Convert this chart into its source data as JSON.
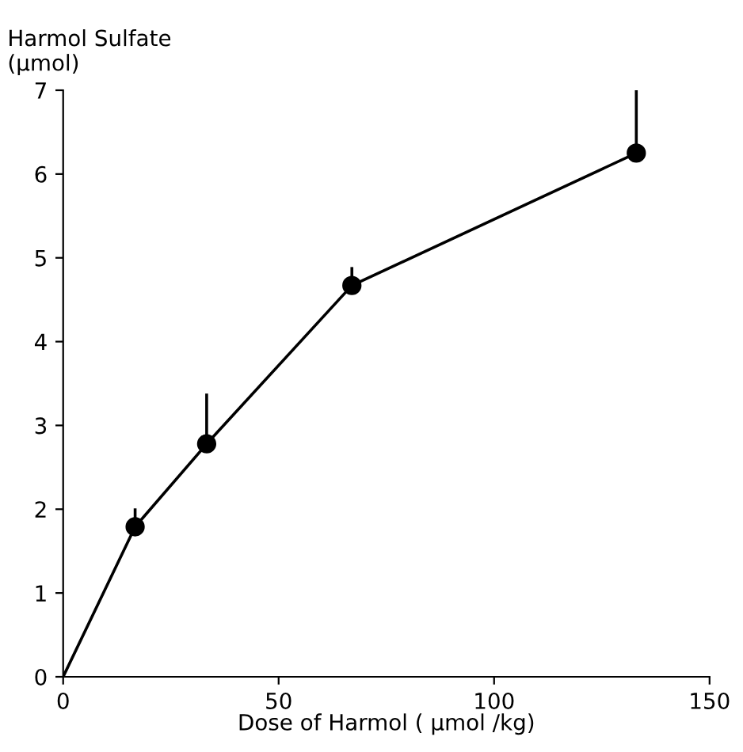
{
  "chart_data": {
    "type": "line",
    "ylabel": "Harmol Sulfate\n(μmol)",
    "xlabel": "Dose of Harmol ( μmol /kg)",
    "xlim": [
      0,
      150
    ],
    "xticks": [
      0,
      50,
      100,
      150
    ],
    "ylim": [
      0,
      7
    ],
    "yticks": [
      0,
      1,
      2,
      3,
      4,
      5,
      6,
      7
    ],
    "grid": false,
    "legend": false,
    "series": [
      {
        "type": "line",
        "color": "#000000",
        "marker": "none",
        "x": [
          0,
          16.7,
          33.3,
          67,
          133
        ],
        "values": [
          0,
          1.79,
          2.78,
          4.67,
          6.25
        ]
      },
      {
        "type": "scatter",
        "color": "#000000",
        "marker": "circle",
        "x": [
          16.7,
          33.3,
          67,
          133
        ],
        "values": [
          1.79,
          2.78,
          4.67,
          6.25
        ],
        "errors": [
          [
            1.79,
            2.01
          ],
          [
            2.78,
            3.38
          ],
          [
            4.67,
            4.89
          ],
          [
            6.25,
            7
          ]
        ]
      }
    ]
  }
}
